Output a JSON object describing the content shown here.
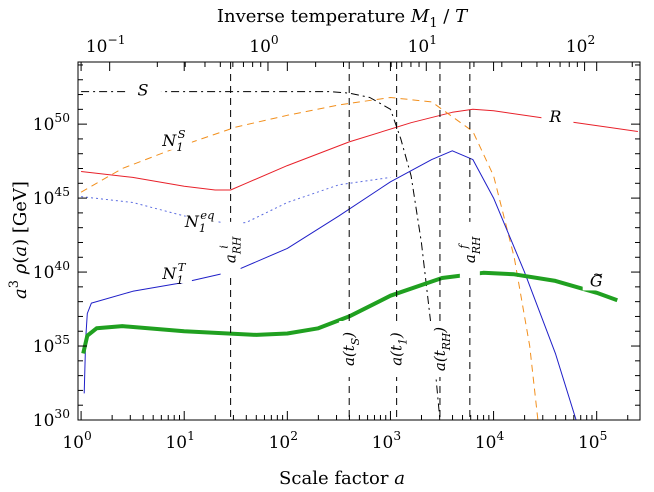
{
  "chart_data": {
    "type": "line",
    "title": "",
    "xlabel": "Scale factor a",
    "ylabel": "a^3 ρ(a) [GeV]",
    "top_xlabel": "Inverse temperature M_1 / T",
    "x_scale": "log",
    "y_scale": "log",
    "xlim_log10": [
      -0.03,
      5.42
    ],
    "ylim_log10": [
      30,
      54.2
    ],
    "top_xlim_log10": [
      -1.2,
      2.35
    ],
    "x_ticks": [
      {
        "log10": 0,
        "label": "10^0"
      },
      {
        "log10": 1,
        "label": "10^1"
      },
      {
        "log10": 2,
        "label": "10^2"
      },
      {
        "log10": 3,
        "label": "10^3"
      },
      {
        "log10": 4,
        "label": "10^4"
      },
      {
        "log10": 5,
        "label": "10^5"
      }
    ],
    "y_ticks": [
      {
        "log10": 30,
        "label": "10^30"
      },
      {
        "log10": 35,
        "label": "10^35"
      },
      {
        "log10": 40,
        "label": "10^40"
      },
      {
        "log10": 45,
        "label": "10^45"
      },
      {
        "log10": 50,
        "label": "10^50"
      }
    ],
    "top_ticks": [
      {
        "log10": -1,
        "label": "10^−1"
      },
      {
        "log10": 0,
        "label": "10^0"
      },
      {
        "log10": 1,
        "label": "10^1"
      },
      {
        "log10": 2,
        "label": "10^2"
      }
    ],
    "series": [
      {
        "name": "S",
        "color": "#000000",
        "dash": "dashdot",
        "width": 1,
        "points_log10": [
          [
            0,
            52.2
          ],
          [
            1.5,
            52.2
          ],
          [
            2,
            52.2
          ],
          [
            2.4,
            52.2
          ],
          [
            2.6,
            52.1
          ],
          [
            2.8,
            51.8
          ],
          [
            3.0,
            51.0
          ],
          [
            3.1,
            49.0
          ],
          [
            3.2,
            46.5
          ],
          [
            3.3,
            42.0
          ],
          [
            3.4,
            36.0
          ],
          [
            3.48,
            30.0
          ]
        ]
      },
      {
        "name": "R",
        "color": "#e8212a",
        "dash": "solid",
        "width": 1,
        "points_log10": [
          [
            0,
            46.8
          ],
          [
            0.5,
            46.4
          ],
          [
            1,
            45.8
          ],
          [
            1.3,
            45.55
          ],
          [
            1.45,
            45.55
          ],
          [
            1.6,
            46.0
          ],
          [
            2,
            47.2
          ],
          [
            2.6,
            48.8
          ],
          [
            3.2,
            50.1
          ],
          [
            3.6,
            50.8
          ],
          [
            3.8,
            51.0
          ],
          [
            4.0,
            50.9
          ],
          [
            4.5,
            50.4
          ],
          [
            5,
            49.9
          ],
          [
            5.4,
            49.5
          ]
        ]
      },
      {
        "name": "N_1^S",
        "color": "#f28f1c",
        "dash": "dashed",
        "width": 1,
        "points_log10": [
          [
            0,
            45.4
          ],
          [
            0.4,
            47.0
          ],
          [
            1,
            48.6
          ],
          [
            1.5,
            49.8
          ],
          [
            2,
            50.6
          ],
          [
            2.5,
            51.3
          ],
          [
            3,
            51.8
          ],
          [
            3.4,
            51.5
          ],
          [
            3.8,
            49.5
          ],
          [
            4.0,
            46.5
          ],
          [
            4.2,
            41.0
          ],
          [
            4.35,
            35.0
          ],
          [
            4.43,
            30.0
          ]
        ]
      },
      {
        "name": "N_1^eq",
        "color": "#5a6be0",
        "dash": "dotted",
        "width": 1,
        "points_log10": [
          [
            0,
            45.1
          ],
          [
            0.5,
            44.7
          ],
          [
            1,
            43.8
          ],
          [
            1.45,
            43.25
          ],
          [
            1.6,
            43.35
          ],
          [
            2,
            44.7
          ],
          [
            2.5,
            45.9
          ],
          [
            3,
            46.4
          ]
        ]
      },
      {
        "name": "N_1^T",
        "color": "#1f1fc8",
        "dash": "solid",
        "width": 1,
        "points_log10": [
          [
            0.03,
            31.8
          ],
          [
            0.045,
            35.5
          ],
          [
            0.06,
            37.2
          ],
          [
            0.1,
            37.9
          ],
          [
            0.5,
            38.7
          ],
          [
            1,
            39.3
          ],
          [
            1.5,
            40.1
          ],
          [
            2,
            41.6
          ],
          [
            2.5,
            43.8
          ],
          [
            3,
            46.1
          ],
          [
            3.4,
            47.6
          ],
          [
            3.6,
            48.2
          ],
          [
            3.8,
            47.6
          ],
          [
            4.0,
            45.0
          ],
          [
            4.3,
            40.0
          ],
          [
            4.6,
            34.5
          ],
          [
            4.8,
            30.0
          ]
        ]
      },
      {
        "name": "G~",
        "color": "#20a020",
        "dash": "solid",
        "width": 4,
        "points_log10": [
          [
            0.02,
            34.5
          ],
          [
            0.06,
            35.7
          ],
          [
            0.15,
            36.2
          ],
          [
            0.4,
            36.35
          ],
          [
            1,
            36.0
          ],
          [
            1.7,
            35.75
          ],
          [
            2,
            35.85
          ],
          [
            2.3,
            36.2
          ],
          [
            2.6,
            37.0
          ],
          [
            3,
            38.4
          ],
          [
            3.5,
            39.6
          ],
          [
            3.9,
            39.95
          ],
          [
            4.2,
            39.85
          ],
          [
            4.6,
            39.4
          ],
          [
            5.0,
            38.6
          ],
          [
            5.2,
            38.1
          ]
        ]
      }
    ],
    "vertical_lines": [
      {
        "label": "a_RH^i",
        "log10": 1.45,
        "label_y_log10": 41.5
      },
      {
        "label": "a(t_S)",
        "log10": 2.6,
        "label_y_log10": 34.8
      },
      {
        "label": "a(t_1)",
        "log10": 3.06,
        "label_y_log10": 34.8
      },
      {
        "label": "a(t_RH)",
        "log10": 3.48,
        "label_y_log10": 34.8
      },
      {
        "label": "a_RH^f",
        "log10": 3.77,
        "label_y_log10": 41.5
      }
    ],
    "annotations": [
      {
        "text": "S",
        "x_log10": 0.6,
        "y_log10": 52.2
      },
      {
        "text": "N_1^S",
        "x_log10": 0.9,
        "y_log10": 48.8
      },
      {
        "text": "R",
        "x_log10": 4.6,
        "y_log10": 50.4
      },
      {
        "text": "N_1^eq",
        "x_log10": 1.15,
        "y_log10": 43.3
      },
      {
        "text": "N_1^T",
        "x_log10": 0.9,
        "y_log10": 39.8
      },
      {
        "text": "G~",
        "x_log10": 5.0,
        "y_log10": 39.3
      }
    ]
  }
}
